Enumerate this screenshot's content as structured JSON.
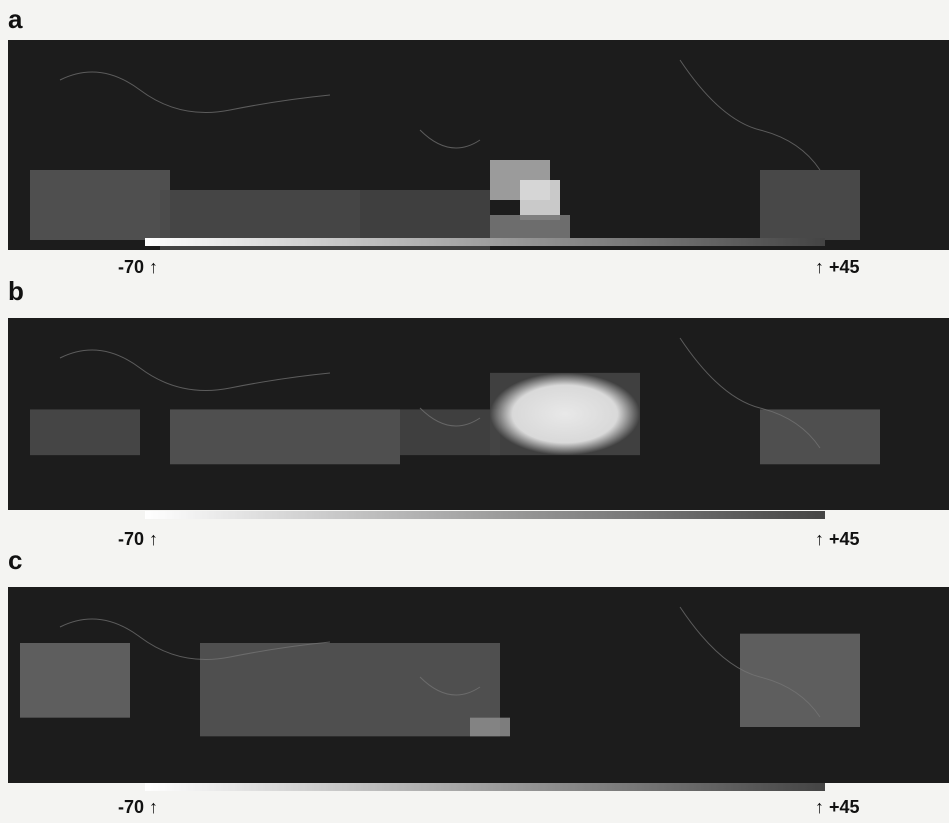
{
  "panels": [
    {
      "label": "a",
      "scale_min": "-70 ↑",
      "scale_max": "↑ +45"
    },
    {
      "label": "b",
      "scale_min": "-70 ↑",
      "scale_max": "↑ +45"
    },
    {
      "label": "c",
      "scale_min": "-70 ↑",
      "scale_max": "↑ +45"
    }
  ]
}
